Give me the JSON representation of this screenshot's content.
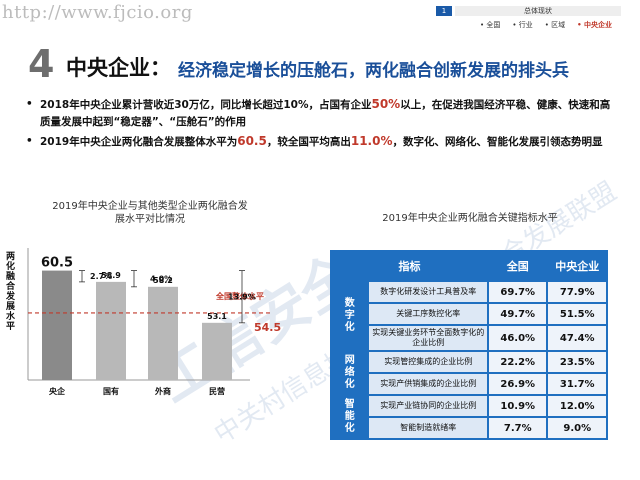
{
  "watermark": {
    "url": "http://www.fjcio.org",
    "logo_text": "工信安全",
    "diagonal_text": "中关村信息技术和实体经济融合发展联盟"
  },
  "nav": {
    "number": "1",
    "section": "总体现状",
    "items": [
      "• 全国",
      "• 行业",
      "• 区域",
      "• 中央企业"
    ],
    "active_index": 3
  },
  "header": {
    "number": "4",
    "title": "中央企业：",
    "subtitle": "经济稳定增长的压舱石，两化融合创新发展的排头兵"
  },
  "bullets": [
    {
      "pre": "2018年中央企业累计营收近30万亿，同比增长超过10%，占国有企业",
      "hl": "50%",
      "post": "以上，在促进我国经济平稳、健康、快速和高质量发展中起到“稳定器”、“压舱石”的作用"
    },
    {
      "pre": "2019年中央企业两化融合发展整体水平为",
      "hl": "60.5",
      "mid": "，较全国平均高出",
      "hl2": "11.0%",
      "post": "，数字化、网络化、智能化发展引领态势明显"
    }
  ],
  "chart_data": {
    "type": "bar",
    "title": "2019年中央企业与其他类型企业两化融合发展水平对比情况",
    "ylabel": "两化融合发展水平",
    "categories": [
      "央企",
      "国有",
      "外商",
      "民营"
    ],
    "values": [
      60.5,
      58.9,
      58.2,
      53.1
    ],
    "value_labels": [
      "60.5",
      "58.9",
      "58.2",
      "53.1"
    ],
    "diff_labels": [
      "2.7%",
      "4.0%",
      "13.9%"
    ],
    "reference_line": {
      "label": "全国整体水平",
      "value": 54.5,
      "value_label": "54.5"
    },
    "colors": {
      "highlight": "#8a8a8a",
      "others": "#b8b8b8",
      "reference": "#c0392b"
    }
  },
  "table": {
    "title": "2019年中央企业两化融合关键指标水平",
    "headers": [
      "指标",
      "全国",
      "中央企业"
    ],
    "groups": [
      {
        "category": "数字化",
        "rows": [
          {
            "indicator": "数字化研发设计工具普及率",
            "national": "69.7%",
            "central": "77.9%"
          },
          {
            "indicator": "关键工序数控化率",
            "national": "49.7%",
            "central": "51.5%"
          },
          {
            "indicator": "实现关键业务环节全面数字化的企业比例",
            "national": "46.0%",
            "central": "47.4%"
          }
        ]
      },
      {
        "category": "网络化",
        "rows": [
          {
            "indicator": "实现管控集成的企业比例",
            "national": "22.2%",
            "central": "23.5%"
          },
          {
            "indicator": "实现产供销集成的企业比例",
            "national": "26.9%",
            "central": "31.7%"
          }
        ]
      },
      {
        "category": "智能化",
        "rows": [
          {
            "indicator": "实现产业链协同的企业比例",
            "national": "10.9%",
            "central": "12.0%"
          },
          {
            "indicator": "智能制造就绪率",
            "national": "7.7%",
            "central": "9.0%"
          }
        ]
      }
    ]
  }
}
